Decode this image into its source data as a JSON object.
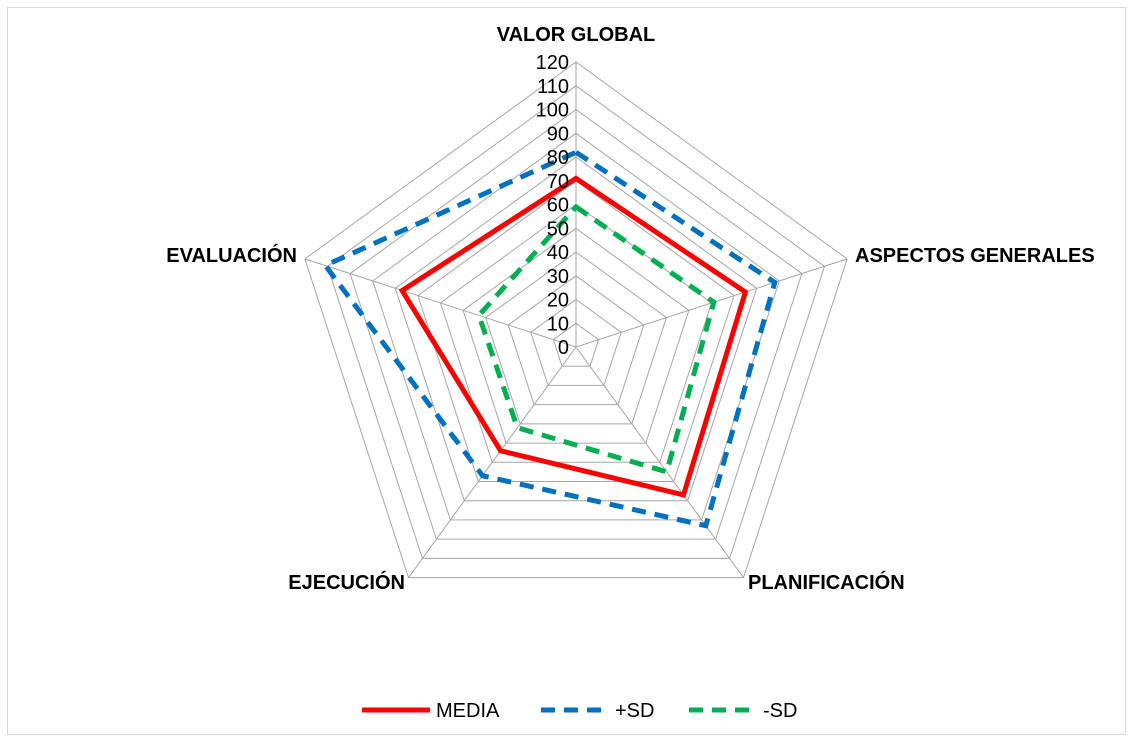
{
  "chart_data": {
    "type": "radar",
    "axes": [
      "VALOR GLOBAL",
      "ASPECTOS GENERALES",
      "PLANIFICACIÓN",
      "EJECUCIÓN",
      "EVALUACIÓN"
    ],
    "ticks": [
      "0",
      "10",
      "20",
      "30",
      "40",
      "50",
      "60",
      "70",
      "80",
      "90",
      "100",
      "110",
      "120"
    ],
    "rlim": [
      0,
      120
    ],
    "series": [
      {
        "name": "MEDIA",
        "values": [
          71,
          75,
          77,
          54,
          77
        ],
        "color": "#ff0000",
        "dash": "solid"
      },
      {
        "name": "+SD",
        "values": [
          82,
          88,
          93,
          67,
          111
        ],
        "color": "#0070c0",
        "dash": "dashed"
      },
      {
        "name": "-SD",
        "values": [
          59,
          61,
          65,
          42,
          43
        ],
        "color": "#00b050",
        "dash": "dashed"
      }
    ],
    "grid": true,
    "legend_position": "bottom"
  }
}
